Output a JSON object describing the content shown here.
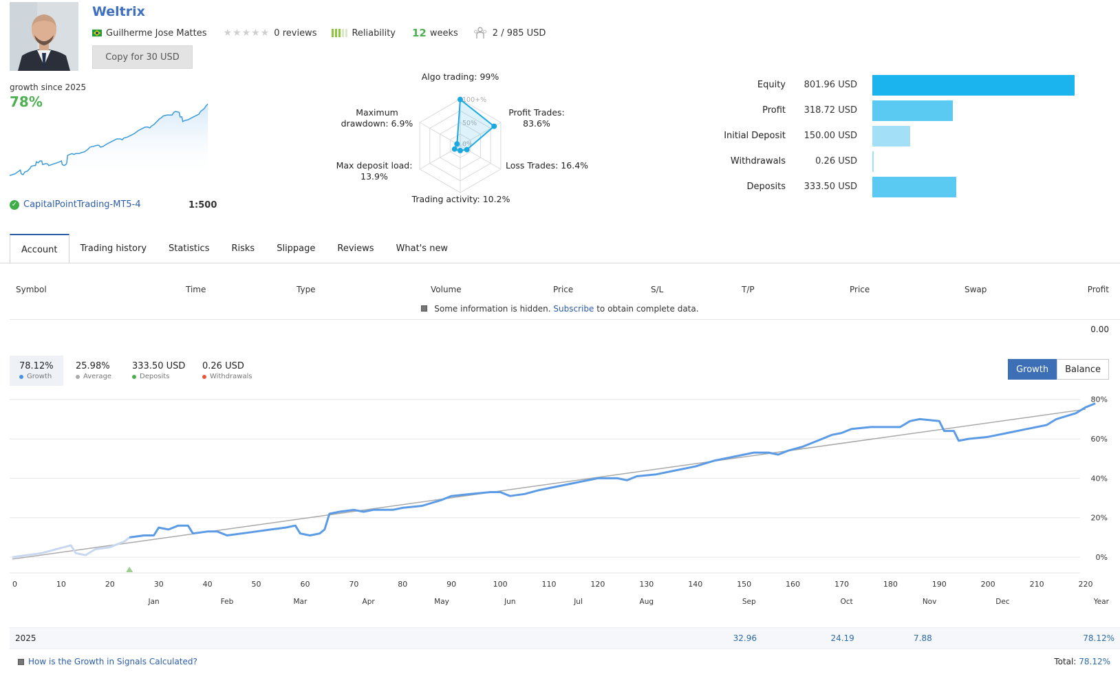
{
  "header": {
    "title": "Weltrix",
    "author": "Guilherme Jose Mattes",
    "rating_stars": 0,
    "reviews": "0 reviews",
    "reliability_label": "Reliability",
    "weeks_num": "12",
    "weeks_label": "weeks",
    "subscribers": "2  /  985 USD",
    "copy_button": "Copy for 30 USD"
  },
  "mini_growth": {
    "caption": "growth since 2025",
    "value": "78%",
    "broker": "CapitalPointTrading-MT5-4",
    "leverage": "1:500"
  },
  "radar": {
    "ticks": [
      "100+%",
      "50%",
      "0%"
    ],
    "axes": [
      {
        "label_lines": [
          "Algo trading: 99%"
        ],
        "value": 0.99
      },
      {
        "label_lines": [
          "Profit Trades:",
          "83.6%"
        ],
        "value": 0.836
      },
      {
        "label_lines": [
          "Loss Trades: 16.4%"
        ],
        "value": 0.164
      },
      {
        "label_lines": [
          "Trading activity: 10.2%"
        ],
        "value": 0.102
      },
      {
        "label_lines": [
          "Max deposit load:",
          "13.9%"
        ],
        "value": 0.139
      },
      {
        "label_lines": [
          "Maximum",
          "drawdown: 6.9%"
        ],
        "value": 0.069
      }
    ]
  },
  "balances": {
    "max": 801.96,
    "items": [
      {
        "label": "Equity",
        "value_text": "801.96 USD",
        "value": 801.96,
        "color": "#1bb4ef"
      },
      {
        "label": "Profit",
        "value_text": "318.72 USD",
        "value": 318.72,
        "color": "#5bcaf3"
      },
      {
        "label": "Initial Deposit",
        "value_text": "150.00 USD",
        "value": 150.0,
        "color": "#a3e0f8"
      },
      {
        "label": "Withdrawals",
        "value_text": "0.26 USD",
        "value": 0.26,
        "color": "#a3e0f8"
      },
      {
        "label": "Deposits",
        "value_text": "333.50 USD",
        "value": 333.5,
        "color": "#5bcaf3"
      }
    ]
  },
  "tabs": [
    "Account",
    "Trading history",
    "Statistics",
    "Risks",
    "Slippage",
    "Reviews",
    "What's new"
  ],
  "table": {
    "columns": [
      "Symbol",
      "Time",
      "Type",
      "Volume",
      "Price",
      "S/L",
      "T/P",
      "Price",
      "Swap",
      "Profit"
    ],
    "hidden_prefix": "Some information is hidden.",
    "hidden_link": "Subscribe",
    "hidden_suffix": "to obtain complete data.",
    "total": "0.00"
  },
  "stats": [
    {
      "value": "78.12%",
      "label": "Growth",
      "color": "#4a90e2"
    },
    {
      "value": "25.98%",
      "label": "Average",
      "color": "#aaaaaa"
    },
    {
      "value": "333.50 USD",
      "label": "Deposits",
      "color": "#4caf50"
    },
    {
      "value": "0.26 USD",
      "label": "Withdrawals",
      "color": "#e8593c"
    }
  ],
  "toggle": {
    "growth": "Growth",
    "balance": "Balance"
  },
  "chart_data": {
    "type": "line",
    "x_range": [
      0,
      220
    ],
    "y_range": [
      -8,
      82
    ],
    "x_ticks": [
      0,
      10,
      20,
      30,
      40,
      50,
      60,
      70,
      80,
      90,
      100,
      110,
      120,
      130,
      140,
      150,
      160,
      170,
      180,
      190,
      200,
      210,
      220
    ],
    "y_ticks": [
      "0%",
      "20%",
      "40%",
      "60%",
      "80%"
    ],
    "y_tick_values": [
      0,
      20,
      40,
      60,
      80
    ],
    "months": [
      {
        "label": "Jan",
        "x": 29
      },
      {
        "label": "Feb",
        "x": 44
      },
      {
        "label": "Mar",
        "x": 59
      },
      {
        "label": "Apr",
        "x": 73
      },
      {
        "label": "May",
        "x": 88
      },
      {
        "label": "Jun",
        "x": 102
      },
      {
        "label": "Jul",
        "x": 116
      },
      {
        "label": "Aug",
        "x": 130
      },
      {
        "label": "Sep",
        "x": 151
      },
      {
        "label": "Oct",
        "x": 171
      },
      {
        "label": "Nov",
        "x": 188
      },
      {
        "label": "Dec",
        "x": 203
      }
    ],
    "year_label": "Year",
    "trend": [
      [
        0,
        -1
      ],
      [
        220,
        75
      ]
    ],
    "series": [
      {
        "name": "Growth",
        "points": [
          [
            0,
            0
          ],
          [
            3,
            1
          ],
          [
            6,
            2
          ],
          [
            9,
            4
          ],
          [
            12,
            6
          ],
          [
            13,
            2
          ],
          [
            15,
            1
          ],
          [
            17,
            4
          ],
          [
            20,
            5
          ],
          [
            23,
            8
          ],
          [
            24,
            10
          ],
          [
            27,
            11
          ],
          [
            29,
            11
          ],
          [
            30,
            15
          ],
          [
            32,
            14
          ],
          [
            34,
            16
          ],
          [
            36,
            16
          ],
          [
            37,
            12
          ],
          [
            40,
            13
          ],
          [
            42,
            13
          ],
          [
            44,
            11
          ],
          [
            47,
            12
          ],
          [
            50,
            13
          ],
          [
            53,
            14
          ],
          [
            56,
            15
          ],
          [
            58,
            16
          ],
          [
            59,
            12
          ],
          [
            61,
            11
          ],
          [
            63,
            12
          ],
          [
            64,
            14
          ],
          [
            65,
            22
          ],
          [
            67,
            23
          ],
          [
            70,
            24
          ],
          [
            72,
            23
          ],
          [
            74,
            24
          ],
          [
            76,
            24
          ],
          [
            78,
            24
          ],
          [
            80,
            25
          ],
          [
            84,
            26
          ],
          [
            88,
            29
          ],
          [
            90,
            31
          ],
          [
            94,
            32
          ],
          [
            98,
            33
          ],
          [
            100,
            33
          ],
          [
            102,
            31
          ],
          [
            105,
            32
          ],
          [
            108,
            34
          ],
          [
            112,
            36
          ],
          [
            116,
            38
          ],
          [
            120,
            40
          ],
          [
            124,
            40
          ],
          [
            126,
            39
          ],
          [
            128,
            41
          ],
          [
            132,
            42
          ],
          [
            136,
            44
          ],
          [
            140,
            46
          ],
          [
            144,
            49
          ],
          [
            148,
            51
          ],
          [
            152,
            53
          ],
          [
            155,
            53
          ],
          [
            157,
            52
          ],
          [
            159,
            54
          ],
          [
            162,
            56
          ],
          [
            166,
            60
          ],
          [
            168,
            62
          ],
          [
            170,
            63
          ],
          [
            172,
            65
          ],
          [
            176,
            66
          ],
          [
            180,
            66
          ],
          [
            182,
            66
          ],
          [
            184,
            69
          ],
          [
            186,
            70
          ],
          [
            190,
            69
          ],
          [
            191,
            64
          ],
          [
            193,
            64
          ],
          [
            194,
            59
          ],
          [
            196,
            60
          ],
          [
            200,
            61
          ],
          [
            204,
            63
          ],
          [
            208,
            65
          ],
          [
            212,
            67
          ],
          [
            214,
            70
          ],
          [
            218,
            73
          ],
          [
            220,
            76
          ],
          [
            222,
            78
          ]
        ]
      }
    ],
    "year_row": {
      "year": "2025",
      "values": [
        {
          "x": 150,
          "text": "32.96"
        },
        {
          "x": 170,
          "text": "24.19"
        },
        {
          "x": 187,
          "text": "7.88"
        }
      ],
      "total": "78.12%"
    }
  },
  "footer": {
    "link": "How is the Growth in Signals Calculated?",
    "total_label": "Total:",
    "total_value": "78.12%"
  }
}
